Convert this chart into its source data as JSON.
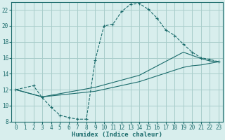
{
  "xlabel": "Humidex (Indice chaleur)",
  "bg_color": "#d8eeed",
  "grid_color": "#a8ccca",
  "line_color": "#1a6b6b",
  "xlim": [
    -0.5,
    23.5
  ],
  "ylim": [
    8,
    23
  ],
  "xticks": [
    0,
    1,
    2,
    3,
    4,
    5,
    6,
    7,
    8,
    9,
    10,
    11,
    12,
    13,
    14,
    15,
    16,
    17,
    18,
    19,
    20,
    21,
    22,
    23
  ],
  "yticks": [
    8,
    10,
    12,
    14,
    16,
    18,
    20,
    22
  ],
  "curve1_x": [
    0,
    2,
    3,
    4,
    5,
    6,
    7,
    8,
    9,
    10,
    11,
    12,
    13,
    14,
    15,
    16,
    17,
    18,
    19,
    20,
    21,
    22,
    23
  ],
  "curve1_y": [
    12,
    12.5,
    11,
    9.8,
    8.8,
    8.5,
    8.3,
    8.3,
    15.7,
    20.0,
    20.2,
    21.8,
    22.7,
    22.8,
    22.1,
    21.0,
    19.5,
    18.8,
    17.7,
    16.7,
    16.0,
    15.8,
    15.5
  ],
  "curve2_x": [
    0,
    3,
    9,
    14,
    19,
    20,
    21,
    22,
    23
  ],
  "curve2_y": [
    12,
    11.1,
    12.3,
    13.8,
    16.7,
    16.3,
    15.9,
    15.6,
    15.5
  ],
  "curve3_x": [
    0,
    3,
    9,
    14,
    19,
    20,
    21,
    22,
    23
  ],
  "curve3_y": [
    12,
    11.1,
    11.8,
    13.0,
    14.8,
    15.0,
    15.1,
    15.3,
    15.5
  ]
}
